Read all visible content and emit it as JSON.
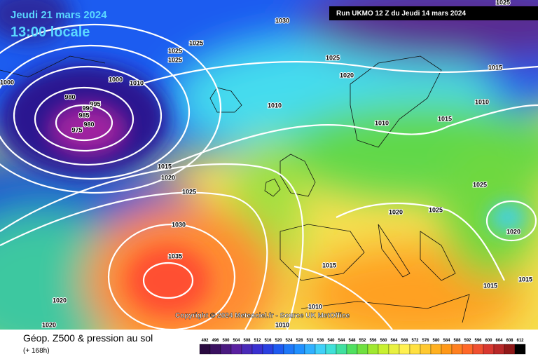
{
  "header": {
    "date": "Jeudi 21 mars 2024",
    "time": "13:00 locale",
    "run": "Run UKMO 12 Z du Jeudi 14 mars 2024"
  },
  "isobars": [
    1030,
    1025,
    1025,
    1025,
    1020,
    1025,
    1015,
    1000,
    1010,
    980,
    995,
    990,
    985,
    980,
    975,
    1010,
    1010,
    1010,
    1015,
    1015,
    1020,
    1025,
    1030,
    1035,
    1020,
    1025,
    1025,
    1020,
    1015,
    1015,
    1015,
    1020,
    1020,
    1010,
    1010,
    1025,
    1000
  ],
  "footer": {
    "copyright": "Copyright © 2024 Meteociel.fr - Source UK MetOffice"
  },
  "legend": {
    "title": "Géop. Z500 & pression au sol",
    "subtitle": "(+ 168h)",
    "scale": [
      492,
      496,
      500,
      504,
      508,
      512,
      516,
      520,
      524,
      528,
      532,
      536,
      540,
      544,
      548,
      552,
      556,
      560,
      564,
      568,
      572,
      576,
      580,
      584,
      588,
      592,
      596,
      600,
      604,
      608,
      612
    ]
  }
}
